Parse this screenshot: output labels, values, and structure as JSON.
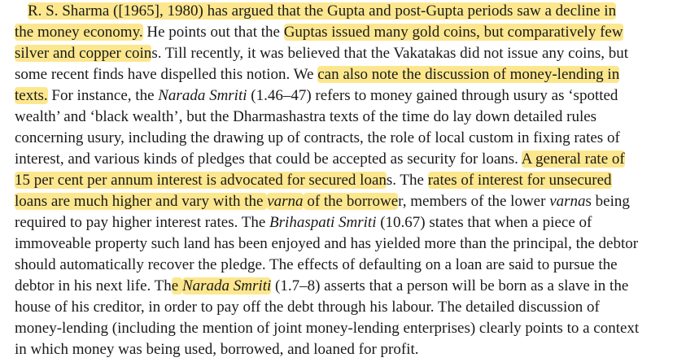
{
  "document": {
    "highlight_color": "#fde78e",
    "lines": [
      [
        {
          "text": "R. S. Sharma ([1965], 1980) has argued that the Gupta and post-Gupta periods saw a decline in",
          "hl": true
        }
      ],
      [
        {
          "text": "the money economy.",
          "hl": true
        },
        {
          "text": " He points out that the "
        },
        {
          "text": "Guptas issued many gold coins, but comparatively few",
          "hl": true
        }
      ],
      [
        {
          "text": "silver and copper coin",
          "hl": true
        },
        {
          "text": "s. Till recently, it was believed that the Vakatakas did not issue any coins, but"
        }
      ],
      [
        {
          "text": "some recent finds have dispelled this notion. We "
        },
        {
          "text": "can also note the discussion of money-lending in",
          "hl": true
        }
      ],
      [
        {
          "text": "texts.",
          "hl": true
        },
        {
          "text": " For instance, the "
        },
        {
          "text": "Narada Smriti",
          "it": true
        },
        {
          "text": " (1.46–47) refers to money gained through usury as ‘spotted"
        }
      ],
      [
        {
          "text": "wealth’ and ‘black wealth’, but the Dharmashastra texts of the time do lay down detailed rules"
        }
      ],
      [
        {
          "text": "concerning usury, including the drawing up of contracts, the role of local custom in fixing rates of"
        }
      ],
      [
        {
          "text": "interest, and various kinds of pledges that could be accepted as security for loans. "
        },
        {
          "text": "A general rate of",
          "hl": true
        }
      ],
      [
        {
          "text": "15 per cent per annum interest is advocated for secured loan",
          "hl": true
        },
        {
          "text": "s. The "
        },
        {
          "text": "rates of interest for unsecured",
          "hl": true
        }
      ],
      [
        {
          "text": "loans are much higher and vary with the ",
          "hl": true
        },
        {
          "text": "varna",
          "hl": true,
          "it": true
        },
        {
          "text": " of the borrowe",
          "hl": true
        },
        {
          "text": "r, members of the lower "
        },
        {
          "text": "varna",
          "it": true
        },
        {
          "text": "s being"
        }
      ],
      [
        {
          "text": "required to pay higher interest rates. The "
        },
        {
          "text": "Brihaspati Smriti",
          "it": true
        },
        {
          "text": " (10.67) states that when a piece of"
        }
      ],
      [
        {
          "text": "immoveable property such land has been enjoyed and has yielded more than the principal, the debtor"
        }
      ],
      [
        {
          "text": "should automatically recover the pledge. The effects of defaulting on a loan are said to pursue the"
        }
      ],
      [
        {
          "text": "debtor in his next life. Th"
        },
        {
          "text": "e ",
          "hl": true
        },
        {
          "text": "Narada Smriti",
          "hl": true,
          "it": true
        },
        {
          "text": " (1.7–8) asserts that a person will be born as a slave in the"
        }
      ],
      [
        {
          "text": "house of his creditor, in order to pay off the debt through his labour. The detailed discussion of"
        }
      ],
      [
        {
          "text": "money-lending (including the mention of joint money-lending enterprises) clearly points to a context"
        }
      ],
      [
        {
          "text": "in which money was being used, borrowed, and loaned for profit."
        }
      ]
    ]
  }
}
